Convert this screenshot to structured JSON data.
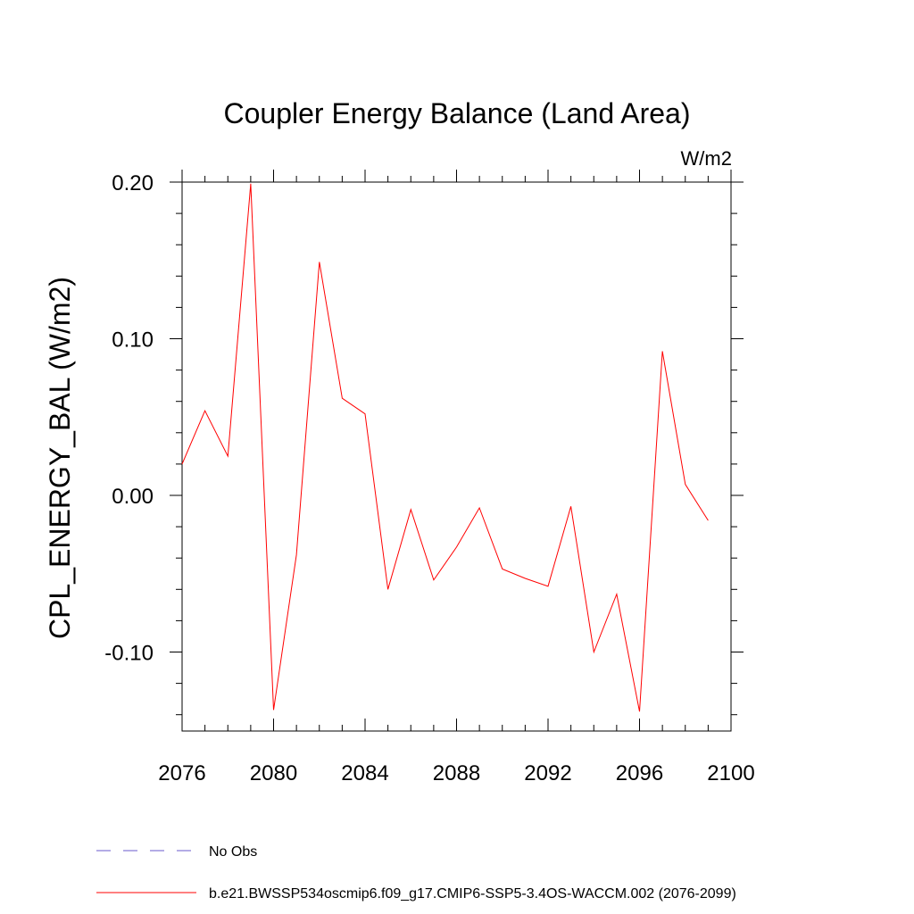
{
  "chart_data": {
    "type": "line",
    "title": "Coupler Energy Balance (Land Area)",
    "units": "W/m2",
    "ylabel": "CPL_ENERGY_BAL  (W/m2)",
    "xlabel": "",
    "xlim": [
      2076,
      2100
    ],
    "ylim": [
      -0.15,
      0.21
    ],
    "x_ticks": [
      2076,
      2080,
      2084,
      2088,
      2092,
      2096,
      2100
    ],
    "x_tick_labels": [
      "2076",
      "2080",
      "2084",
      "2088",
      "2092",
      "2096",
      "2100"
    ],
    "y_ticks": [
      -0.1,
      0.0,
      0.1,
      0.2
    ],
    "y_tick_labels": [
      "-0.10",
      "0.00",
      "0.10",
      "0.20"
    ],
    "grid": false,
    "series": [
      {
        "name": "b.e21.BWSSP534oscmip6.f09_g17.CMIP6-SSP5-3.4OS-WACCM.002 (2076-2099)",
        "color": "#ff0000",
        "x": [
          2076,
          2077,
          2078,
          2079,
          2080,
          2081,
          2082,
          2083,
          2084,
          2085,
          2086,
          2087,
          2088,
          2089,
          2090,
          2091,
          2092,
          2093,
          2094,
          2095,
          2096,
          2097,
          2098,
          2099
        ],
        "values": [
          0.02,
          0.054,
          0.025,
          0.199,
          -0.137,
          -0.038,
          0.149,
          0.062,
          0.052,
          -0.06,
          -0.009,
          -0.054,
          -0.033,
          -0.008,
          -0.047,
          -0.053,
          -0.058,
          -0.007,
          -0.1,
          -0.063,
          -0.138,
          0.092,
          0.007,
          -0.016
        ]
      }
    ],
    "legend": [
      {
        "label": "No Obs",
        "style": "dashed",
        "color": "#6a5acd"
      },
      {
        "label": "b.e21.BWSSP534oscmip6.f09_g17.CMIP6-SSP5-3.4OS-WACCM.002 (2076-2099)",
        "style": "solid",
        "color": "#ff0000"
      }
    ],
    "legend_position": "bottom-left"
  }
}
